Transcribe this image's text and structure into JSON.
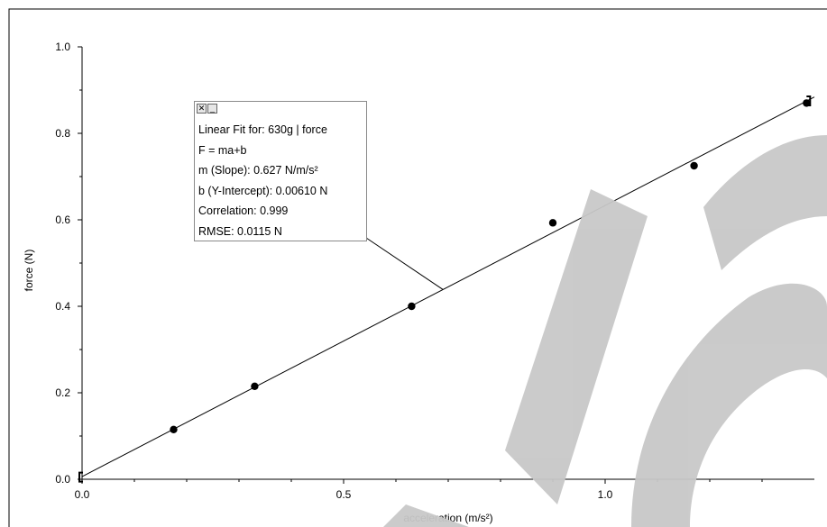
{
  "chart_data": {
    "type": "scatter",
    "xlabel": "acceleration (m/s²)",
    "ylabel": "force (N)",
    "xlim": [
      0.0,
      1.4
    ],
    "ylim": [
      0.0,
      1.0
    ],
    "x_ticks": [
      0.0,
      0.5,
      1.0
    ],
    "x_tick_labels": [
      "0.0",
      "0.5",
      "1.0"
    ],
    "y_ticks": [
      0.0,
      0.2,
      0.4,
      0.6,
      0.8,
      1.0
    ],
    "y_tick_labels": [
      "0.0",
      "0.2",
      "0.4",
      "0.6",
      "0.8",
      "1.0"
    ],
    "grid": false,
    "series": [
      {
        "points": [
          {
            "x": 0.175,
            "y": 0.115
          },
          {
            "x": 0.33,
            "y": 0.215
          },
          {
            "x": 0.63,
            "y": 0.4
          },
          {
            "x": 0.9,
            "y": 0.593
          },
          {
            "x": 1.17,
            "y": 0.725
          },
          {
            "x": 1.385,
            "y": 0.87
          }
        ]
      }
    ],
    "fit": {
      "slope": 0.627,
      "intercept": 0.0061
    },
    "annotation": {
      "lines": [
        "Linear Fit for: 630g | force",
        "F = ma+b",
        "m (Slope): 0.627 N/m/s²",
        "b (Y-Intercept): 0.00610 N",
        "Correlation: 0.999",
        "RMSE: 0.0115 N"
      ],
      "close_glyph": "✕",
      "minimize_glyph": "_"
    },
    "watermark": "Sample"
  },
  "colors": {
    "line": "#000000",
    "point": "#000000",
    "watermark": "#c8c8c8"
  }
}
